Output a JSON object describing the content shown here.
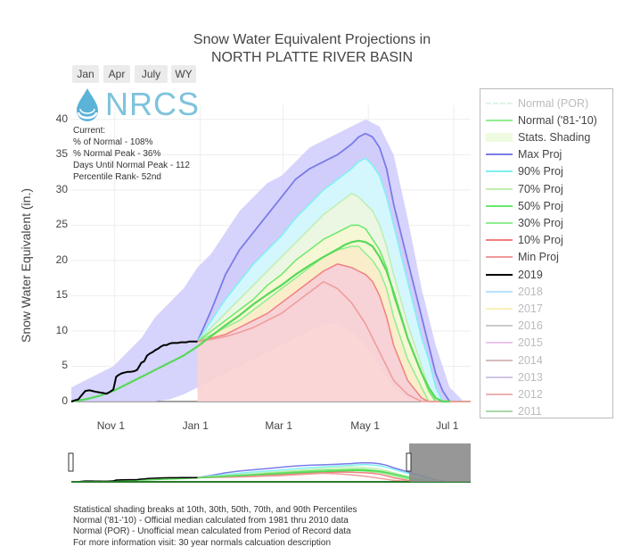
{
  "range_buttons": [
    "Jan",
    "Apr",
    "July",
    "WY"
  ],
  "logo_text": "NRCS",
  "stats": {
    "current": "Current:",
    "pct_normal": "% of Normal - 108%",
    "pct_normal_peak": "% Normal Peak - 36%",
    "days_until_peak": "Days Until Normal Peak - 112",
    "percentile_rank": "Percentile Rank- 52nd"
  },
  "footnotes": [
    "Statistical shading breaks at 10th, 30th, 50th, 70th, and 90th Percentiles",
    "Normal ('81-'10) - Official median calculated from 1981 thru 2010 data",
    "Normal (POR) - Unofficial mean calculated from Period of Record data",
    "For more information visit: 30 year normals calcuation description"
  ],
  "colors": {
    "max": "#7b7be8",
    "p90": "#7ff0f2",
    "p70": "#bfeeb0",
    "p50": "#6ce86c",
    "p30": "#90ee90",
    "p10": "#f08080",
    "min": "#f09a9a",
    "max_fill": "#cfccfb",
    "p90_fill": "#d3fbfd",
    "p70_fill": "#eefbe0",
    "p50_fill": "#f9fbd0",
    "p30_fill": "#fdf0c4",
    "p10_fill": "#fbd2d2",
    "current": "#000000",
    "normal": "#a8e6cf"
  },
  "chart_data": {
    "type": "area",
    "title": "Snow Water Equivalent Projections in\nNORTH PLATTE RIVER BASIN",
    "title_lines": [
      "Snow Water Equivalent Projections in",
      "NORTH PLATTE RIVER BASIN"
    ],
    "ylabel": "Snow Water Equivalent (in.)",
    "ylim": [
      0,
      42
    ],
    "yticks": [
      0,
      5,
      10,
      15,
      20,
      25,
      30,
      35,
      40
    ],
    "xlim": [
      0,
      285
    ],
    "xticks": [
      {
        "day": 31,
        "label": "Nov 1"
      },
      {
        "day": 92,
        "label": "Jan 1"
      },
      {
        "day": 151,
        "label": "Mar 1"
      },
      {
        "day": 212,
        "label": "May 1"
      },
      {
        "day": 273,
        "label": "Jul 1"
      }
    ],
    "x_unit": "day of water year (Oct 1 = 0)",
    "legend": [
      {
        "label": "Normal (POR)",
        "style": "dash",
        "color": "#c8f0d8",
        "faded": true
      },
      {
        "label": "Normal ('81-'10)",
        "style": "line",
        "color": "#90ee90"
      },
      {
        "label": "Stats. Shading",
        "style": "box",
        "color": "#eefbe0"
      },
      {
        "label": "Max Proj",
        "style": "line",
        "color": "#7b7be8"
      },
      {
        "label": "90% Proj",
        "style": "line",
        "color": "#7ff0f2"
      },
      {
        "label": "70% Proj",
        "style": "line",
        "color": "#bfeeb0"
      },
      {
        "label": "50% Proj",
        "style": "line",
        "color": "#6ce86c"
      },
      {
        "label": "30% Proj",
        "style": "line",
        "color": "#90ee90"
      },
      {
        "label": "10% Proj",
        "style": "line",
        "color": "#f08080"
      },
      {
        "label": "Min Proj",
        "style": "line",
        "color": "#f09a9a"
      },
      {
        "label": "2019",
        "style": "line",
        "color": "#000000"
      },
      {
        "label": "2018",
        "style": "line",
        "color": "#87cefa",
        "faded": true
      },
      {
        "label": "2017",
        "style": "line",
        "color": "#f0e68c",
        "faded": true
      },
      {
        "label": "2016",
        "style": "line",
        "color": "#a9a9a9",
        "faded": true
      },
      {
        "label": "2015",
        "style": "line",
        "color": "#dda0dd",
        "faded": true
      },
      {
        "label": "2014",
        "style": "line",
        "color": "#bc8f8f",
        "faded": true
      },
      {
        "label": "2013",
        "style": "line",
        "color": "#b0a0d0",
        "faded": true
      },
      {
        "label": "2012",
        "style": "line",
        "color": "#e08080",
        "faded": true
      },
      {
        "label": "2011",
        "style": "line",
        "color": "#6fbf6f",
        "faded": true
      }
    ],
    "series": [
      {
        "name": "Max Proj",
        "key": "max",
        "x": [
          90,
          100,
          110,
          120,
          130,
          140,
          150,
          160,
          170,
          180,
          190,
          200,
          205,
          210,
          215,
          220,
          225,
          230,
          240,
          250,
          255,
          260,
          265,
          270,
          275,
          280,
          285
        ],
        "y": [
          8.5,
          13,
          18,
          21.5,
          24,
          26.5,
          29,
          31.5,
          33,
          34,
          35,
          36.5,
          37.5,
          38,
          37.5,
          36,
          33,
          28,
          20,
          12,
          8,
          4,
          1.5,
          0,
          0,
          0,
          0
        ]
      },
      {
        "name": "90% Proj",
        "key": "p90",
        "x": [
          90,
          100,
          110,
          120,
          130,
          140,
          150,
          160,
          170,
          180,
          190,
          200,
          205,
          210,
          215,
          220,
          225,
          230,
          240,
          250,
          255,
          260,
          265,
          270,
          275,
          280,
          285
        ],
        "y": [
          8.5,
          11.5,
          14.5,
          17,
          19.5,
          21.5,
          23.5,
          26,
          28,
          30,
          31.5,
          33,
          34,
          34.5,
          33.5,
          32,
          29,
          25,
          17,
          9,
          6,
          2,
          0,
          0,
          0,
          0,
          0
        ]
      },
      {
        "name": "70% Proj",
        "key": "p70",
        "x": [
          90,
          100,
          110,
          120,
          130,
          140,
          150,
          160,
          170,
          180,
          190,
          200,
          205,
          210,
          215,
          220,
          225,
          230,
          240,
          250,
          255,
          260,
          265,
          270,
          275,
          280,
          285
        ],
        "y": [
          8.5,
          10.5,
          12.5,
          14.5,
          16.5,
          18.5,
          20.5,
          22.5,
          24.5,
          26.5,
          28,
          29.5,
          29,
          28,
          27,
          25,
          22,
          18,
          11,
          5,
          2,
          0,
          0,
          0,
          0,
          0,
          0
        ]
      },
      {
        "name": "50% Proj",
        "key": "p50",
        "x": [
          90,
          100,
          110,
          120,
          130,
          140,
          150,
          160,
          170,
          180,
          190,
          200,
          205,
          210,
          215,
          220,
          225,
          230,
          240,
          250,
          255,
          260,
          265,
          270,
          275,
          280,
          285
        ],
        "y": [
          8.5,
          10,
          11.5,
          13,
          14.5,
          16.5,
          18,
          20,
          21.5,
          23,
          24,
          25,
          25,
          24.5,
          23,
          21.5,
          19,
          15,
          9,
          4,
          1.5,
          0,
          0,
          0,
          0,
          0,
          0
        ]
      },
      {
        "name": "30% Proj",
        "key": "p30",
        "x": [
          90,
          100,
          110,
          120,
          130,
          140,
          150,
          160,
          170,
          180,
          190,
          200,
          205,
          210,
          215,
          220,
          225,
          230,
          240,
          250,
          255,
          260,
          265,
          270,
          275,
          280,
          285
        ],
        "y": [
          8.5,
          9.5,
          10.5,
          11.5,
          13,
          14.5,
          16,
          17.5,
          19,
          20.5,
          21.5,
          22,
          22,
          21,
          20,
          18.5,
          16,
          12,
          6,
          2,
          0,
          0,
          0,
          0,
          0,
          0,
          0
        ]
      },
      {
        "name": "10% Proj",
        "key": "p10",
        "x": [
          90,
          100,
          110,
          120,
          130,
          140,
          150,
          160,
          170,
          180,
          190,
          200,
          205,
          210,
          215,
          220,
          225,
          230,
          240,
          250,
          255,
          260,
          265,
          270,
          275,
          280,
          285
        ],
        "y": [
          8.5,
          9,
          9.5,
          10.5,
          11.5,
          12.5,
          14,
          15.5,
          17,
          18.5,
          19.5,
          19,
          18.5,
          18,
          17,
          15,
          12,
          8,
          3,
          0.5,
          0,
          0,
          0,
          0,
          0,
          0,
          0
        ]
      },
      {
        "name": "Min Proj",
        "key": "min",
        "x": [
          90,
          100,
          110,
          120,
          130,
          140,
          150,
          160,
          170,
          180,
          190,
          200,
          205,
          210,
          215,
          220,
          225,
          230,
          240,
          250,
          255,
          260,
          265,
          270,
          275,
          280,
          285
        ],
        "y": [
          8.5,
          8.8,
          9.2,
          9.8,
          10.5,
          11.5,
          12.5,
          14,
          15.5,
          17,
          16,
          14,
          12.5,
          11,
          9,
          7,
          5,
          3,
          1,
          0,
          0,
          0,
          0,
          0,
          0,
          0,
          0
        ]
      },
      {
        "name": "Normal ('81-'10)",
        "key": "normal",
        "x": [
          0,
          10,
          20,
          30,
          40,
          50,
          60,
          70,
          80,
          90,
          100,
          110,
          120,
          130,
          140,
          150,
          160,
          170,
          180,
          190,
          195,
          200,
          205,
          210,
          215,
          220,
          225,
          230,
          240,
          250,
          255,
          260,
          265,
          270
        ],
        "y": [
          0,
          0.3,
          0.8,
          1.5,
          2.5,
          3.5,
          4.5,
          5.5,
          6.5,
          7.8,
          9.3,
          10.8,
          12.2,
          13.8,
          15.2,
          16.5,
          18,
          19.3,
          20.5,
          21.6,
          22.2,
          22.6,
          22.8,
          22.6,
          22,
          20.5,
          18.5,
          15.5,
          9,
          4,
          2,
          0.5,
          0,
          0
        ]
      },
      {
        "name": "2019",
        "key": "current",
        "x": [
          0,
          3,
          5,
          7,
          10,
          13,
          15,
          17,
          20,
          23,
          25,
          27,
          30,
          32,
          34,
          36,
          38,
          40,
          42,
          45,
          47,
          50,
          52,
          54,
          56,
          58,
          60,
          62,
          64,
          66,
          68,
          70,
          72,
          74,
          76,
          78,
          80,
          82,
          84,
          86,
          88,
          90
        ],
        "y": [
          0,
          0.2,
          0.3,
          0.8,
          1.5,
          1.6,
          1.5,
          1.4,
          1.3,
          1.2,
          1.1,
          1.3,
          1.7,
          3.5,
          3.8,
          4,
          4.1,
          4.2,
          4.2,
          4.3,
          4.5,
          5.5,
          5.7,
          6.5,
          6.8,
          7,
          7.3,
          7.5,
          7.8,
          8,
          8,
          8.2,
          8.3,
          8.3,
          8.3,
          8.4,
          8.4,
          8.4,
          8.5,
          8.5,
          8.5,
          8.5
        ]
      }
    ],
    "bands": [
      {
        "name": "max-band",
        "upper": "max",
        "lower": "p90",
        "fill_key": "max_fill"
      },
      {
        "name": "p90-band",
        "upper": "p90",
        "lower": "p70",
        "fill_key": "p90_fill"
      },
      {
        "name": "p70-band",
        "upper": "p70",
        "lower": "p50",
        "fill_key": "p70_fill"
      },
      {
        "name": "p50-band",
        "upper": "p50",
        "lower": "p30",
        "fill_key": "p50_fill"
      },
      {
        "name": "p30-band",
        "upper": "p30",
        "lower": "p10",
        "fill_key": "p30_fill"
      },
      {
        "name": "p10-band",
        "upper": "p10",
        "lower": "min",
        "fill_key": "p10_fill"
      }
    ],
    "stats_shading": {
      "x": [
        0,
        10,
        20,
        30,
        40,
        50,
        60,
        70,
        80,
        90,
        100,
        110,
        120,
        130,
        140,
        150,
        160,
        170,
        180,
        190,
        200,
        210,
        220,
        230,
        240,
        250,
        260,
        270,
        280
      ],
      "upper": [
        2,
        3,
        4,
        5,
        7,
        9,
        12,
        14,
        16,
        19,
        21,
        24,
        27,
        29,
        31,
        32,
        34,
        36,
        37,
        38,
        39,
        40,
        39,
        35,
        26,
        16,
        8,
        2,
        0
      ],
      "lower": [
        0,
        0,
        0,
        0,
        0,
        0,
        0,
        0.3,
        1,
        2,
        3,
        4,
        5,
        6,
        7,
        8,
        9,
        10,
        11,
        11,
        10,
        8,
        5,
        2,
        0.5,
        0,
        0,
        0,
        0
      ]
    }
  }
}
